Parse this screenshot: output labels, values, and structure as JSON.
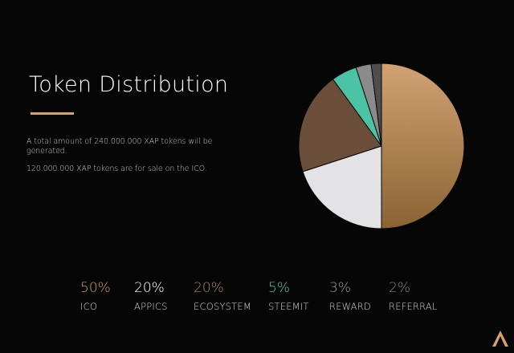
{
  "slide": {
    "title": "Token Distribution",
    "accent_color": "#d6a26c",
    "background_color": "#060606",
    "description": [
      "A total amount of 240.000.000 XAP tokens will be generated.",
      "120.000.000 XAP tokens are for sale on the ICO."
    ]
  },
  "chart_data": {
    "type": "pie",
    "title": "",
    "slices": [
      {
        "label": "ICO",
        "value": 50,
        "display": "50%",
        "color": "#b48450",
        "legend_color": "#c99a66"
      },
      {
        "label": "APPICS",
        "value": 20,
        "display": "20%",
        "color": "#e3e3e5",
        "legend_color": "#ffffff"
      },
      {
        "label": "ECOSYSTEM",
        "value": 20,
        "display": "20%",
        "color": "#6b4e3a",
        "legend_color": "#a78462"
      },
      {
        "label": "STEEMIT",
        "value": 5,
        "display": "5%",
        "color": "#4bc4a6",
        "legend_color": "#56c7a6"
      },
      {
        "label": "REWARD",
        "value": 3,
        "display": "3%",
        "color": "#8b8b8b",
        "legend_color": "#9a9a9a"
      },
      {
        "label": "REFERRAL",
        "value": 2,
        "display": "2%",
        "color": "#4e4e4e",
        "legend_color": "#858585"
      }
    ],
    "start_angle_deg": 0,
    "direction": "clockwise",
    "legend_position": "bottom"
  },
  "logo": {
    "icon": "appics-logo-icon",
    "color": "#d6a26c"
  }
}
